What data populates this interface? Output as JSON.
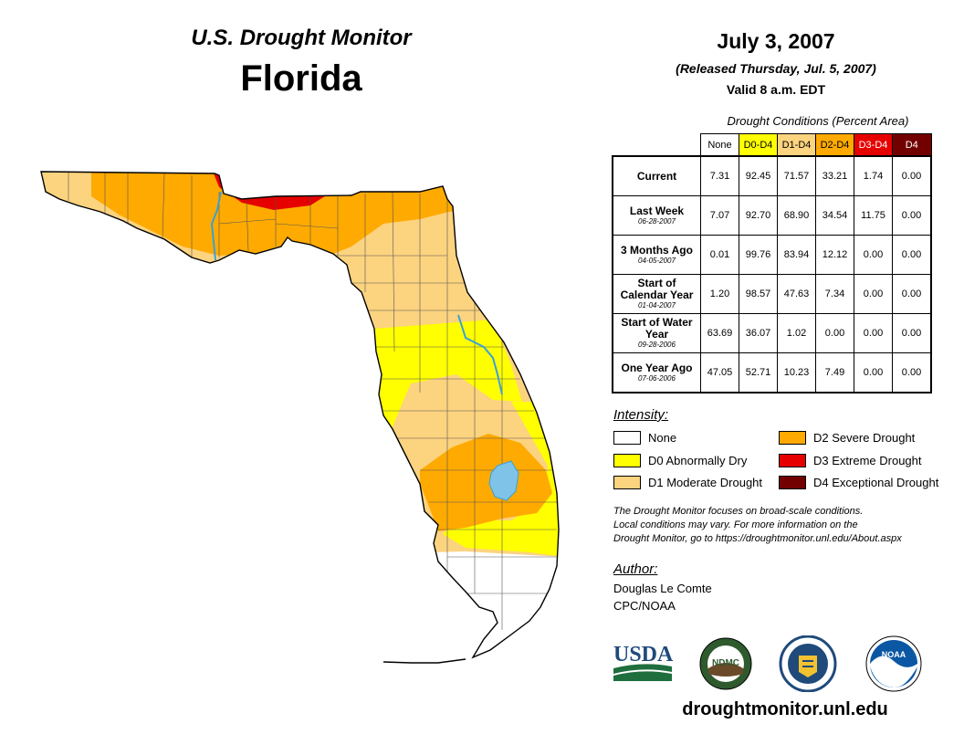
{
  "header": {
    "subtitle": "U.S. Drought Monitor",
    "state": "Florida",
    "date": "July 3, 2007",
    "released": "(Released Thursday, Jul. 5, 2007)",
    "valid": "Valid 8 a.m. EDT"
  },
  "table": {
    "caption": "Drought Conditions (Percent Area)",
    "columns": [
      {
        "label": "None",
        "bg": "#ffffff",
        "fg": "#000000"
      },
      {
        "label": "D0-D4",
        "bg": "#ffff00",
        "fg": "#000000"
      },
      {
        "label": "D1-D4",
        "bg": "#fcd37f",
        "fg": "#000000"
      },
      {
        "label": "D2-D4",
        "bg": "#ffaa00",
        "fg": "#000000"
      },
      {
        "label": "D3-D4",
        "bg": "#e60000",
        "fg": "#ffffff"
      },
      {
        "label": "D4",
        "bg": "#730000",
        "fg": "#ffffff"
      }
    ],
    "rows": [
      {
        "label": "Current",
        "date": "",
        "values": [
          "7.31",
          "92.45",
          "71.57",
          "33.21",
          "1.74",
          "0.00"
        ]
      },
      {
        "label": "Last Week",
        "date": "06-28-2007",
        "values": [
          "7.07",
          "92.70",
          "68.90",
          "34.54",
          "11.75",
          "0.00"
        ]
      },
      {
        "label": "3 Months Ago",
        "date": "04-05-2007",
        "values": [
          "0.01",
          "99.76",
          "83.94",
          "12.12",
          "0.00",
          "0.00"
        ]
      },
      {
        "label": "Start of Calendar Year",
        "date": "01-04-2007",
        "values": [
          "1.20",
          "98.57",
          "47.63",
          "7.34",
          "0.00",
          "0.00"
        ]
      },
      {
        "label": "Start of Water Year",
        "date": "09-28-2006",
        "values": [
          "63.69",
          "36.07",
          "1.02",
          "0.00",
          "0.00",
          "0.00"
        ]
      },
      {
        "label": "One Year Ago",
        "date": "07-06-2006",
        "values": [
          "47.05",
          "52.71",
          "10.23",
          "7.49",
          "0.00",
          "0.00"
        ]
      }
    ]
  },
  "legend": {
    "title": "Intensity:",
    "items": [
      {
        "label": "None",
        "color": "#ffffff"
      },
      {
        "label": "D0 Abnormally Dry",
        "color": "#ffff00"
      },
      {
        "label": "D1 Moderate Drought",
        "color": "#fcd37f"
      },
      {
        "label": "D2 Severe Drought",
        "color": "#ffaa00"
      },
      {
        "label": "D3 Extreme Drought",
        "color": "#e60000"
      },
      {
        "label": "D4 Exceptional Drought",
        "color": "#730000"
      }
    ]
  },
  "note": {
    "line1": "The Drought Monitor focuses on broad-scale conditions.",
    "line2": "Local conditions may vary. For more information on the",
    "line3": "Drought Monitor, go to https://droughtmonitor.unl.edu/About.aspx"
  },
  "author": {
    "title": "Author:",
    "name": "Douglas Le Comte",
    "org": "CPC/NOAA"
  },
  "logos": {
    "usda_text": "USDA",
    "ndmc_text": "NDMC",
    "noaa_text": "NOAA"
  },
  "footer": {
    "url": "droughtmonitor.unl.edu"
  },
  "colors": {
    "water": "#7fc4e8",
    "river": "#3aa0d8"
  }
}
